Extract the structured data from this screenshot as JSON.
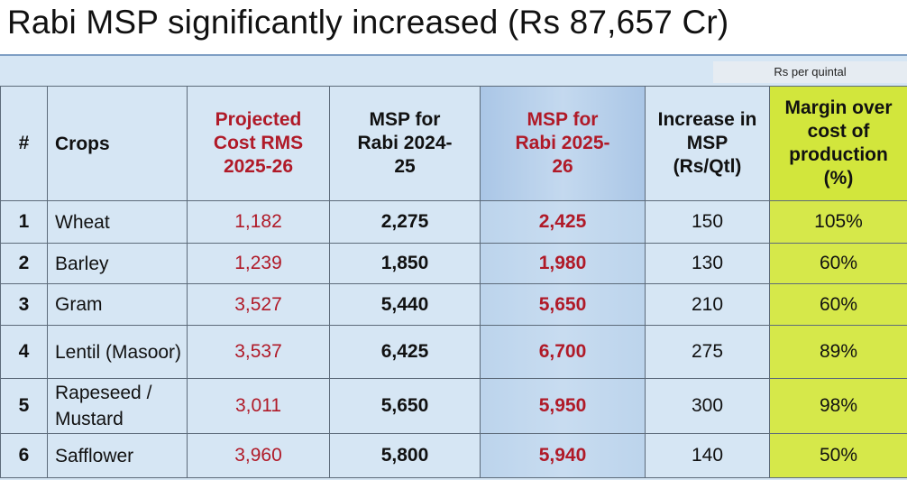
{
  "title": "Rabi MSP significantly increased (Rs 87,657 Cr)",
  "unit_note": "Rs per quintal",
  "colors": {
    "accent_red": "#b01a28",
    "highlight_yellow": "#d6e84a",
    "panel_blue": "#d6e6f4"
  },
  "table": {
    "headers": {
      "num": "#",
      "crop": "Crops",
      "projected_cost": "Projected Cost RMS 2025-26",
      "msp_2024": "MSP for Rabi 2024-25",
      "msp_2025": "MSP for Rabi 2025-26",
      "increase": "Increase in MSP (Rs/Qtl)",
      "margin": "Margin over cost of production (%)"
    },
    "rows": [
      {
        "num": "1",
        "crop": "Wheat",
        "cost": "1,182",
        "msp_2024": "2,275",
        "msp_2025": "2,425",
        "increase": "150",
        "margin": "105%"
      },
      {
        "num": "2",
        "crop": "Barley",
        "cost": "1,239",
        "msp_2024": "1,850",
        "msp_2025": "1,980",
        "increase": "130",
        "margin": "60%"
      },
      {
        "num": "3",
        "crop": "Gram",
        "cost": "3,527",
        "msp_2024": "5,440",
        "msp_2025": "5,650",
        "increase": "210",
        "margin": "60%"
      },
      {
        "num": "4",
        "crop": "Lentil (Masoor)",
        "cost": "3,537",
        "msp_2024": "6,425",
        "msp_2025": "6,700",
        "increase": "275",
        "margin": "89%"
      },
      {
        "num": "5",
        "crop": "Rapeseed / Mustard",
        "cost": "3,011",
        "msp_2024": "5,650",
        "msp_2025": "5,950",
        "increase": "300",
        "margin": "98%"
      },
      {
        "num": "6",
        "crop": "Safflower",
        "cost": "3,960",
        "msp_2024": "5,800",
        "msp_2025": "5,940",
        "increase": "140",
        "margin": "50%"
      }
    ]
  }
}
